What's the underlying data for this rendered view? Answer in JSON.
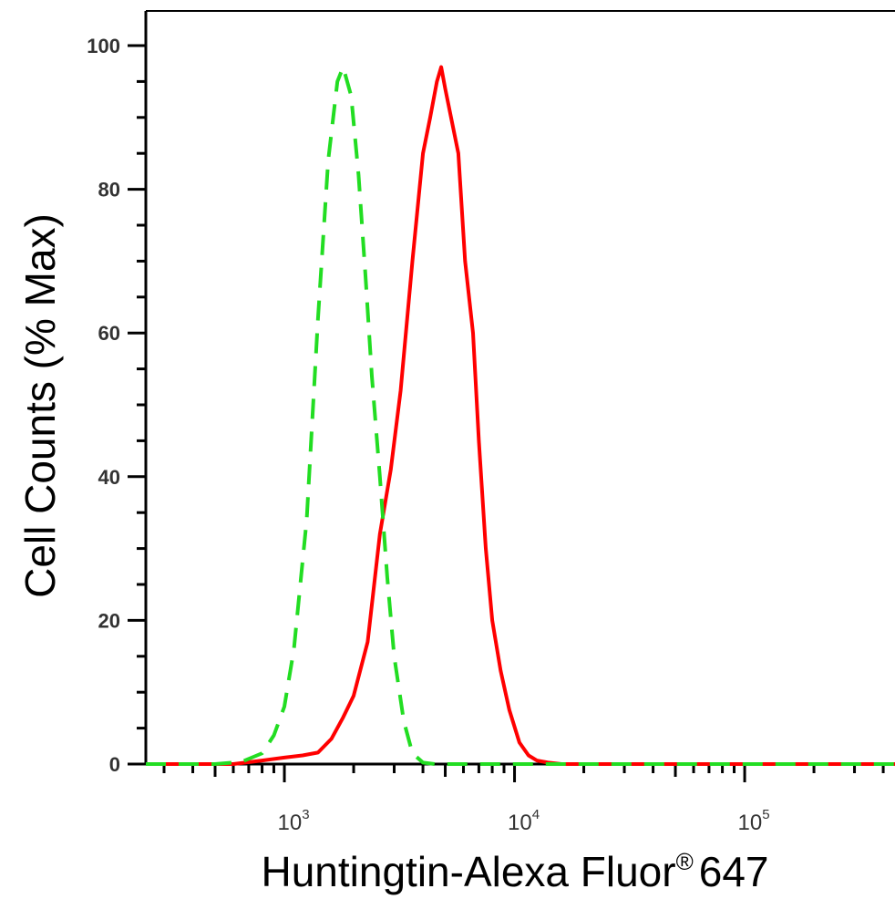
{
  "chart_data": {
    "type": "line",
    "title": "",
    "xlabel": "Huntingtin-Alexa Fluor",
    "xlabel_superscript": "®",
    "xlabel_suffix": "647",
    "ylabel": "Cell Counts (% Max)",
    "xscale": "log",
    "xlim": [
      250,
      450000
    ],
    "ylim": [
      0,
      105
    ],
    "yticks": [
      0,
      20,
      40,
      60,
      80,
      100
    ],
    "ytick_labels": [
      "0",
      "20",
      "40",
      "60",
      "80",
      "100"
    ],
    "xticks_major": [
      1000,
      10000,
      100000
    ],
    "xtick_labels": [
      {
        "base": "10",
        "exp": "3"
      },
      {
        "base": "10",
        "exp": "4"
      },
      {
        "base": "10",
        "exp": "5"
      }
    ],
    "grid": false,
    "legend": null,
    "series": [
      {
        "color": "#ff0000",
        "style": "solid",
        "x": [
          250,
          600,
          800,
          1000,
          1200,
          1400,
          1600,
          1800,
          2000,
          2300,
          2600,
          2900,
          3200,
          3600,
          4000,
          4300,
          4600,
          4800,
          5000,
          5300,
          5700,
          6100,
          6600,
          7000,
          7500,
          8000,
          8700,
          9500,
          10500,
          11500,
          12500,
          14000,
          16000,
          20000,
          50000,
          100000,
          450000
        ],
        "y": [
          0,
          0,
          0.5,
          0.9,
          1.2,
          1.6,
          3.5,
          6.5,
          9.5,
          17,
          32,
          41,
          52,
          70,
          85,
          90,
          95,
          97,
          94,
          90,
          85,
          70,
          60,
          45,
          30,
          20,
          13,
          7.5,
          3,
          1.2,
          0.5,
          0.2,
          0,
          0,
          0,
          0,
          0
        ]
      },
      {
        "color": "#22dd22",
        "style": "dashed",
        "x": [
          250,
          500,
          650,
          800,
          900,
          1000,
          1100,
          1250,
          1400,
          1550,
          1700,
          1800,
          1950,
          2100,
          2250,
          2400,
          2600,
          2800,
          3000,
          3300,
          3600,
          4000,
          4500,
          5000,
          450000
        ],
        "y": [
          0,
          0,
          0.3,
          1.5,
          4,
          8,
          16,
          34,
          62,
          84,
          95,
          97,
          93,
          82,
          68,
          54,
          40,
          26,
          15,
          6,
          1.5,
          0.2,
          0,
          0,
          0
        ]
      }
    ]
  }
}
